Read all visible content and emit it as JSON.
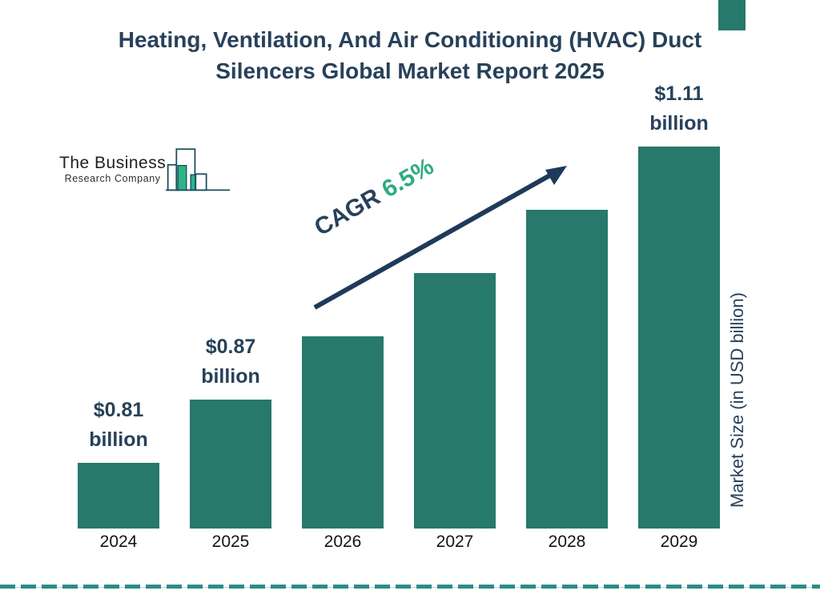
{
  "theme": {
    "navy": "#28415A",
    "bar_teal": "#26796B",
    "green": "#2EAC7E",
    "dash_teal": "#2B8C86",
    "logo_stroke": "#1C4D5E",
    "logo_fill": "#2CB487"
  },
  "brand": {
    "name_line1": "The Business",
    "name_line2": "Research Company"
  },
  "header": {
    "title_lines": [
      "Heating, Ventilation, And Air Conditioning (HVAC) Duct",
      "Silencers Global Market Report 2025"
    ]
  },
  "chart_data": {
    "type": "bar",
    "title": "Heating, Ventilation, And Air Conditioning (HVAC) Duct Silencers Global Market Report 2025",
    "categories": [
      "2024",
      "2025",
      "2026",
      "2027",
      "2028",
      "2029"
    ],
    "values": [
      0.81,
      0.87,
      0.93,
      0.99,
      1.05,
      1.11
    ],
    "unit": "USD billion",
    "ylabel": "Market Size (in USD billion)",
    "xlabel": "",
    "gridlines": false,
    "legend": null,
    "value_labels": [
      {
        "category": "2024",
        "line1": "$0.81",
        "line2": "billion"
      },
      {
        "category": "2025",
        "line1": "$0.87",
        "line2": "billion"
      },
      {
        "category": "2029",
        "line1": "$1.11",
        "line2": "billion"
      }
    ],
    "annotation": {
      "label": "CAGR",
      "value": "6.5%"
    }
  }
}
